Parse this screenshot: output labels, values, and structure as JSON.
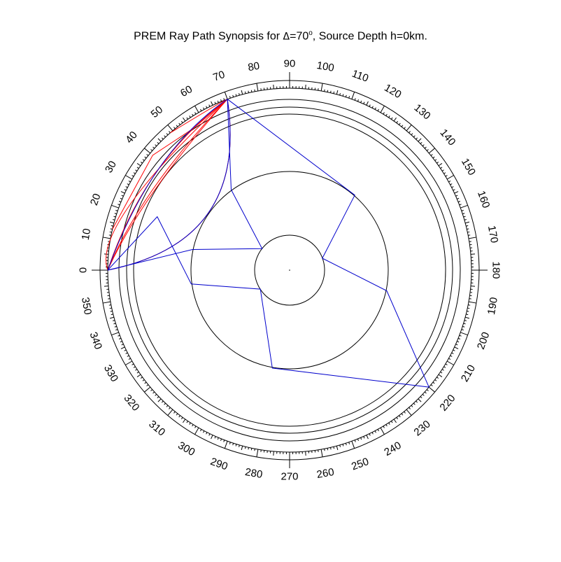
{
  "title": {
    "prefix": "PREM Ray Path Synopsis for ",
    "delta_symbol": "Δ",
    "distance_text": "=70",
    "degree_mark": "o",
    "suffix": ", Source Depth h=0km."
  },
  "diagram": {
    "model": "PREM",
    "epicentral_distance_deg": 70,
    "source_depth_km": 0,
    "source_angle_deg": 0,
    "receiver_angle_deg": 70,
    "angle_labels": [
      "0",
      "10",
      "20",
      "30",
      "40",
      "50",
      "60",
      "70",
      "80",
      "90",
      "100",
      "110",
      "120",
      "130",
      "140",
      "150",
      "160",
      "170",
      "180",
      "190",
      "200",
      "210",
      "220",
      "230",
      "240",
      "250",
      "260",
      "270",
      "280",
      "290",
      "300",
      "310",
      "320",
      "330",
      "340",
      "350"
    ],
    "colors": {
      "red": "#ff0000",
      "blue": "#0000cc",
      "rings": "#000000"
    }
  },
  "ray_paths": [
    {
      "color": "red",
      "points": [
        [
          6371,
          0
        ],
        [
          6050,
          22
        ],
        [
          6371,
          70
        ]
      ]
    },
    {
      "color": "red",
      "points": [
        [
          6371,
          0
        ],
        [
          5500,
          30
        ],
        [
          6371,
          70
        ]
      ]
    },
    {
      "color": "red",
      "points": [
        [
          6371,
          0
        ],
        [
          5560,
          31
        ],
        [
          6371,
          70
        ]
      ]
    },
    {
      "color": "red",
      "points": [
        [
          6371,
          0
        ],
        [
          5790,
          36
        ],
        [
          6371,
          70
        ]
      ]
    },
    {
      "color": "red",
      "points": [
        [
          6371,
          70
        ],
        [
          6000,
          56
        ],
        [
          6260,
          40
        ],
        [
          6371,
          13
        ]
      ]
    },
    {
      "color": "red",
      "points": [
        [
          6371,
          70
        ],
        [
          6300,
          64
        ],
        [
          6371,
          49
        ]
      ]
    },
    {
      "color": "red",
      "points": [
        [
          6371,
          0
        ],
        [
          3480,
          35
        ],
        [
          6371,
          70
        ]
      ]
    },
    {
      "color": "blue",
      "points": [
        [
          6371,
          0
        ],
        [
          3480,
          35
        ],
        [
          6371,
          70
        ]
      ]
    },
    {
      "color": "blue",
      "points": [
        [
          6371,
          0
        ],
        [
          5800,
          38
        ],
        [
          6371,
          70
        ]
      ]
    },
    {
      "color": "blue",
      "points": [
        [
          6371,
          0
        ],
        [
          5000,
          22
        ],
        [
          3480,
          -8
        ],
        [
          1221,
          -33
        ],
        [
          3480,
          -80
        ],
        [
          6371,
          -140
        ],
        [
          3480,
          -168
        ],
        [
          1221,
          -200
        ],
        [
          3480,
          -229
        ],
        [
          6371,
          70
        ]
      ]
    },
    {
      "color": "blue",
      "points": [
        [
          6371,
          0
        ],
        [
          3480,
          12
        ],
        [
          1221,
          38
        ],
        [
          3480,
          54
        ],
        [
          6371,
          70
        ]
      ]
    }
  ]
}
